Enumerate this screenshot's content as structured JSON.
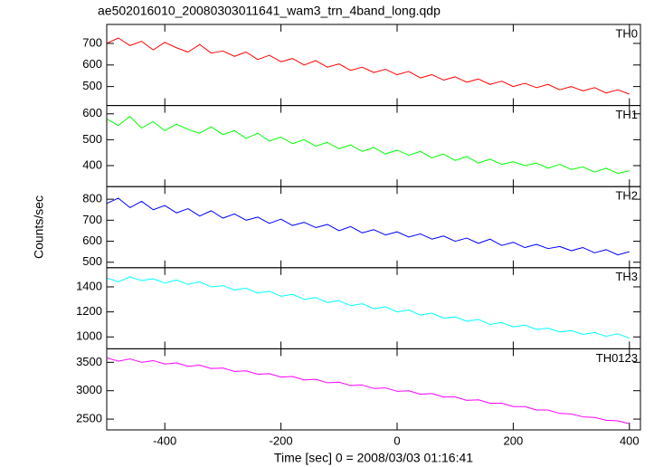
{
  "title": "ae502016010_20080303011641_wam3_trn_4band_long.qdp",
  "x_label": "Time [sec] 0 = 2008/03/03 01:16:41",
  "y_label": "Counts/sec",
  "xlim": [
    -500,
    419
  ],
  "xticks": [
    -400,
    -200,
    0,
    200,
    400
  ],
  "x": [
    -500,
    -480,
    -460,
    -440,
    -420,
    -400,
    -380,
    -360,
    -340,
    -320,
    -300,
    -280,
    -260,
    -240,
    -220,
    -200,
    -180,
    -160,
    -140,
    -120,
    -100,
    -80,
    -60,
    -40,
    -20,
    0,
    20,
    40,
    60,
    80,
    100,
    120,
    140,
    160,
    180,
    200,
    220,
    240,
    260,
    280,
    300,
    320,
    340,
    360,
    380,
    400
  ],
  "chart_data": [
    {
      "type": "line",
      "ylim": [
        412,
        788
      ],
      "yticks": [
        500,
        600,
        700
      ],
      "series": [
        {
          "name": "TH0",
          "color": "#ff0000",
          "values": [
            700,
            725,
            690,
            710,
            670,
            705,
            680,
            660,
            695,
            655,
            665,
            640,
            660,
            625,
            645,
            615,
            630,
            600,
            620,
            590,
            605,
            575,
            590,
            565,
            580,
            555,
            570,
            540,
            555,
            530,
            545,
            520,
            535,
            510,
            525,
            500,
            515,
            495,
            510,
            485,
            500,
            480,
            495,
            470,
            485,
            465
          ]
        }
      ]
    },
    {
      "type": "line",
      "ylim": [
        319,
        632
      ],
      "yticks": [
        400,
        500,
        600
      ],
      "series": [
        {
          "name": "TH1",
          "color": "#00ff00",
          "values": [
            580,
            555,
            590,
            545,
            570,
            535,
            560,
            540,
            525,
            550,
            520,
            535,
            505,
            525,
            495,
            510,
            485,
            500,
            475,
            490,
            465,
            480,
            455,
            470,
            445,
            460,
            440,
            455,
            430,
            445,
            420,
            435,
            410,
            425,
            405,
            415,
            400,
            410,
            390,
            405,
            385,
            395,
            375,
            390,
            370,
            380
          ]
        }
      ]
    },
    {
      "type": "line",
      "ylim": [
        474,
        860
      ],
      "yticks": [
        500,
        600,
        700,
        800
      ],
      "series": [
        {
          "name": "TH2",
          "color": "#0000ff",
          "values": [
            780,
            805,
            760,
            790,
            750,
            770,
            735,
            755,
            720,
            745,
            710,
            730,
            700,
            715,
            685,
            705,
            675,
            690,
            665,
            680,
            650,
            670,
            640,
            655,
            630,
            645,
            620,
            635,
            610,
            625,
            600,
            615,
            590,
            610,
            580,
            595,
            570,
            585,
            565,
            575,
            555,
            570,
            545,
            560,
            535,
            550
          ]
        }
      ]
    },
    {
      "type": "line",
      "ylim": [
        905,
        1553
      ],
      "yticks": [
        1000,
        1200,
        1400
      ],
      "series": [
        {
          "name": "TH3",
          "color": "#00ffff",
          "values": [
            1470,
            1440,
            1480,
            1450,
            1465,
            1430,
            1455,
            1420,
            1440,
            1400,
            1410,
            1375,
            1390,
            1350,
            1365,
            1325,
            1340,
            1300,
            1315,
            1275,
            1290,
            1250,
            1265,
            1225,
            1240,
            1200,
            1215,
            1175,
            1190,
            1150,
            1160,
            1125,
            1140,
            1100,
            1115,
            1080,
            1095,
            1060,
            1070,
            1040,
            1050,
            1020,
            1035,
            1005,
            1025,
            990
          ]
        }
      ]
    },
    {
      "type": "line",
      "ylim": [
        2310,
        3738
      ],
      "yticks": [
        2500,
        3000,
        3500
      ],
      "series": [
        {
          "name": "TH0123",
          "color": "#ff00ff",
          "values": [
            3580,
            3520,
            3560,
            3500,
            3530,
            3470,
            3490,
            3430,
            3450,
            3390,
            3400,
            3340,
            3350,
            3290,
            3300,
            3240,
            3250,
            3190,
            3200,
            3140,
            3150,
            3090,
            3100,
            3040,
            3050,
            2990,
            3000,
            2940,
            2950,
            2890,
            2890,
            2830,
            2840,
            2780,
            2780,
            2720,
            2720,
            2660,
            2660,
            2600,
            2590,
            2540,
            2530,
            2480,
            2470,
            2420
          ]
        }
      ]
    }
  ]
}
